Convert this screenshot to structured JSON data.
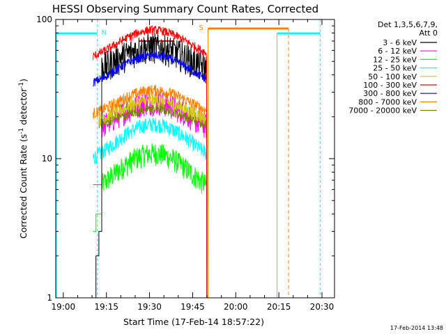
{
  "chart_data": {
    "type": "line",
    "title": "HESSI Observing Summary Count Rates, Corrected",
    "xlabel": "Start Time (17-Feb-14 18:57:22)",
    "ylabel_main": "Corrected Count Rate (s",
    "ylabel_sup1": "-1",
    "ylabel_mid": " detector",
    "ylabel_sup2": "-1",
    "ylabel_end": ")",
    "yscale": "log",
    "ylim": [
      1,
      100
    ],
    "xlim_minutes": [
      0,
      97
    ],
    "x_ticks": [
      "19:00",
      "19:15",
      "19:30",
      "19:45",
      "20:00",
      "20:15",
      "20:30"
    ],
    "y_ticks": [
      "1",
      "10",
      "100"
    ],
    "legend_header": [
      "Det 1,3,5,6,7,9,",
      "Att 0"
    ],
    "legend": [
      {
        "label": "3 - 6 keV",
        "color": "#000000"
      },
      {
        "label": "6 - 12 keV",
        "color": "#ff00ff"
      },
      {
        "label": "12 - 25 keV",
        "color": "#00ff00"
      },
      {
        "label": "25 - 50 keV",
        "color": "#00ffff"
      },
      {
        "label": "50 - 100 keV",
        "color": "#cccc00"
      },
      {
        "label": "100 - 300 keV",
        "color": "#ff0000"
      },
      {
        "label": "300 - 800 keV",
        "color": "#0000ff"
      },
      {
        "label": "800 - 7000 keV",
        "color": "#ff8000"
      },
      {
        "label": "7000 - 20000 keV",
        "color": "#808000"
      }
    ],
    "series": [
      {
        "label": "3 - 6 keV",
        "color": "#000000",
        "start": 13,
        "end": 52.5,
        "base": 38,
        "amp": 0.45,
        "noise": 0.16,
        "pre": [
          [
            13,
            1.0
          ],
          [
            14,
            2.0
          ],
          [
            15,
            3.0
          ],
          [
            16,
            3.4
          ]
        ]
      },
      {
        "label": "6 - 12 keV",
        "color": "#ff00ff",
        "start": 13,
        "end": 52.5,
        "base": 14,
        "amp": 0.55,
        "noise": 0.13,
        "pre": [
          [
            13,
            6.5
          ],
          [
            16,
            14
          ]
        ]
      },
      {
        "label": "12 - 25 keV",
        "color": "#00ff00",
        "start": 13,
        "end": 52.5,
        "base": 4.8,
        "amp": 0.85,
        "noise": 0.12,
        "pre": [
          [
            13,
            3.0
          ],
          [
            14,
            4.0
          ],
          [
            16,
            4.8
          ]
        ]
      },
      {
        "label": "25 - 50 keV",
        "color": "#00ffff",
        "start": 13,
        "end": 52.5,
        "base": 8.5,
        "amp": 0.72,
        "noise": 0.08
      },
      {
        "label": "50 - 100 keV",
        "color": "#cccc00",
        "start": 15,
        "end": 52.5,
        "base": 17,
        "amp": 0.36,
        "noise": 0.07
      },
      {
        "label": "100 - 300 keV",
        "color": "#ff0000",
        "start": 13,
        "end": 52.5,
        "base": 48,
        "amp": 0.5,
        "noise": 0.045
      },
      {
        "label": "300 - 800 keV",
        "color": "#0000ff",
        "start": 13,
        "end": 52.5,
        "base": 31,
        "amp": 0.52,
        "noise": 0.045
      },
      {
        "label": "800 - 7000 keV",
        "color": "#ff8000",
        "start": 13,
        "end": 52.5,
        "base": 19,
        "amp": 0.42,
        "noise": 0.06
      },
      {
        "label": "7000 - 20000 keV",
        "color": "#808000",
        "start": 15,
        "end": 52.5,
        "base": 16,
        "amp": 0.28,
        "noise": 0.05
      }
    ],
    "peak_time_minutes": 34,
    "peak_width_minutes": 16,
    "flags": {
      "N_label": "N",
      "F_label": "F",
      "S_label": "S",
      "night_intervals": [
        [
          0,
          14.5
        ],
        [
          77,
          92
        ]
      ],
      "saa_intervals": [
        [
          53,
          81
        ]
      ],
      "flare_intervals": [
        [
          29,
          41
        ]
      ]
    },
    "timestamp": "17-Feb-2014 13:48"
  }
}
